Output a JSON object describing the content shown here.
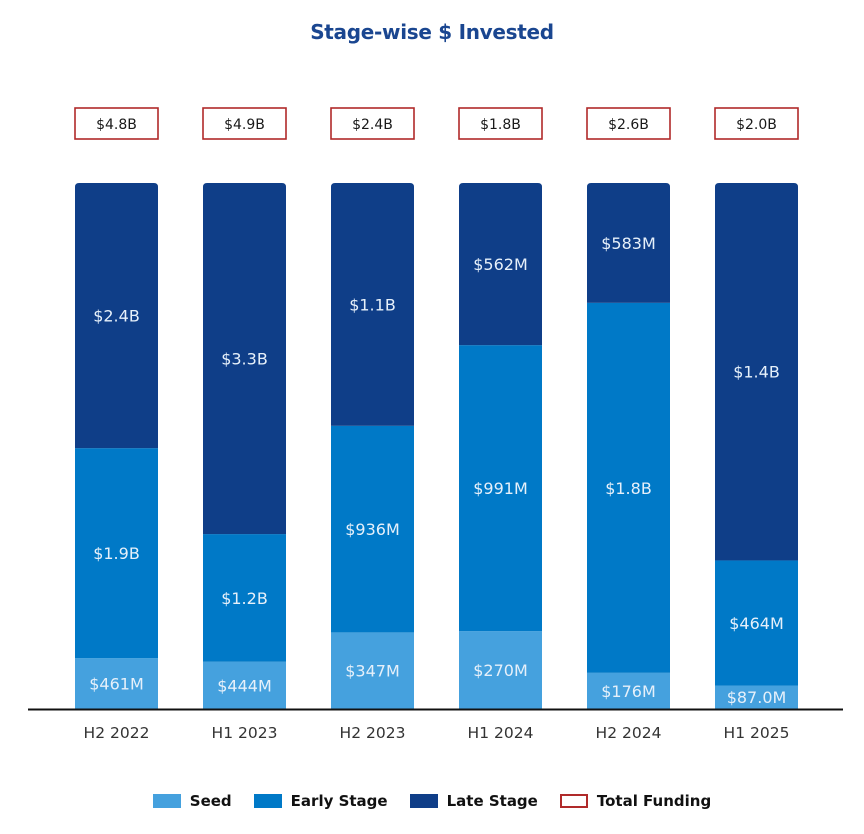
{
  "chart_data": {
    "type": "bar",
    "stacked": true,
    "normalized_100_percent": true,
    "title": "Stage-wise $ Invested",
    "xlabel": "",
    "ylabel": "",
    "grid": false,
    "categories": [
      "H2 2022",
      "H1 2023",
      "H2 2023",
      "H1 2024",
      "H2 2024",
      "H1 2025"
    ],
    "series": [
      {
        "name": "Seed",
        "color": "#45a1de",
        "values": [
          461,
          444,
          347,
          270,
          176,
          87.0
        ],
        "unit": "M",
        "labels": [
          "$461M",
          "$444M",
          "$347M",
          "$270M",
          "$176M",
          "$87.0M"
        ]
      },
      {
        "name": "Early Stage",
        "color": "#0079c7",
        "values": [
          1900,
          1200,
          936,
          991,
          1800,
          464
        ],
        "unit": "M",
        "labels": [
          "$1.9B",
          "$1.2B",
          "$936M",
          "$991M",
          "$1.8B",
          "$464M"
        ]
      },
      {
        "name": "Late Stage",
        "color": "#0f3e88",
        "values": [
          2400,
          3300,
          1100,
          562,
          583,
          1400
        ],
        "unit": "M",
        "labels": [
          "$2.4B",
          "$3.3B",
          "$1.1B",
          "$562M",
          "$583M",
          "$1.4B"
        ]
      }
    ],
    "totals": {
      "name": "Total Funding",
      "border_color": "#b02a2a",
      "labels": [
        "$4.8B",
        "$4.9B",
        "$2.4B",
        "$1.8B",
        "$2.6B",
        "$2.0B"
      ]
    },
    "legend": {
      "position": "bottom",
      "entries": [
        "Seed",
        "Early Stage",
        "Late Stage",
        "Total Funding"
      ]
    }
  }
}
